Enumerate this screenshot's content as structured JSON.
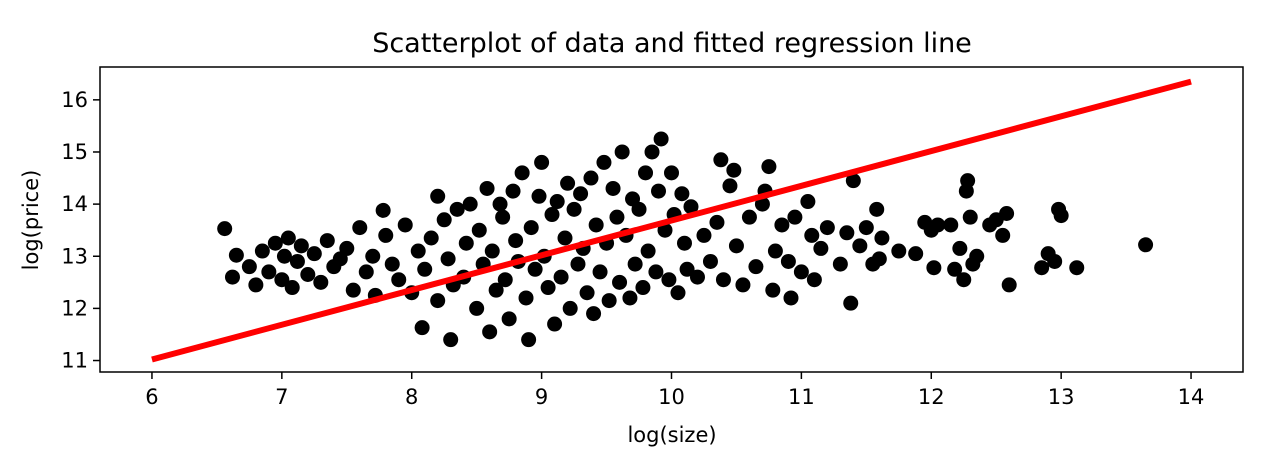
{
  "chart_data": {
    "type": "scatter",
    "title": "Scatterplot of data and fitted regression line",
    "xlabel": "log(size)",
    "ylabel": "log(price)",
    "xlim": [
      5.6,
      14.4
    ],
    "ylim": [
      10.78,
      16.63
    ],
    "x_ticks": [
      6,
      7,
      8,
      9,
      10,
      11,
      12,
      13,
      14
    ],
    "y_ticks": [
      11,
      12,
      13,
      14,
      15,
      16
    ],
    "grid": false,
    "legend": "none",
    "point_color": "#000000",
    "line_color": "#ff0000",
    "series": [
      {
        "type": "scatter",
        "points": [
          [
            6.56,
            13.53
          ],
          [
            6.62,
            12.6
          ],
          [
            6.65,
            13.02
          ],
          [
            6.75,
            12.8
          ],
          [
            6.8,
            12.45
          ],
          [
            6.85,
            13.1
          ],
          [
            6.9,
            12.7
          ],
          [
            6.95,
            13.25
          ],
          [
            7.0,
            12.55
          ],
          [
            7.02,
            13.0
          ],
          [
            7.05,
            13.35
          ],
          [
            7.08,
            12.4
          ],
          [
            7.12,
            12.9
          ],
          [
            7.15,
            13.2
          ],
          [
            7.2,
            12.65
          ],
          [
            7.25,
            13.05
          ],
          [
            7.3,
            12.5
          ],
          [
            7.35,
            13.3
          ],
          [
            7.4,
            12.8
          ],
          [
            7.45,
            12.95
          ],
          [
            7.5,
            13.15
          ],
          [
            7.55,
            12.35
          ],
          [
            7.6,
            13.55
          ],
          [
            7.65,
            12.7
          ],
          [
            7.7,
            13.0
          ],
          [
            7.72,
            12.25
          ],
          [
            7.78,
            13.88
          ],
          [
            7.8,
            13.4
          ],
          [
            7.85,
            12.85
          ],
          [
            7.9,
            12.55
          ],
          [
            7.95,
            13.6
          ],
          [
            8.0,
            12.3
          ],
          [
            8.05,
            13.1
          ],
          [
            8.08,
            11.63
          ],
          [
            8.1,
            12.75
          ],
          [
            8.15,
            13.35
          ],
          [
            8.2,
            12.15
          ],
          [
            8.2,
            14.15
          ],
          [
            8.25,
            13.7
          ],
          [
            8.28,
            12.95
          ],
          [
            8.3,
            11.4
          ],
          [
            8.32,
            12.45
          ],
          [
            8.35,
            13.9
          ],
          [
            8.4,
            12.6
          ],
          [
            8.42,
            13.25
          ],
          [
            8.45,
            14.0
          ],
          [
            8.5,
            12.0
          ],
          [
            8.52,
            13.5
          ],
          [
            8.55,
            12.85
          ],
          [
            8.58,
            14.3
          ],
          [
            8.6,
            11.55
          ],
          [
            8.62,
            13.1
          ],
          [
            8.65,
            12.35
          ],
          [
            8.68,
            14.0
          ],
          [
            8.7,
            13.75
          ],
          [
            8.72,
            12.55
          ],
          [
            8.75,
            11.8
          ],
          [
            8.78,
            14.25
          ],
          [
            8.8,
            13.3
          ],
          [
            8.82,
            12.9
          ],
          [
            8.85,
            14.6
          ],
          [
            8.88,
            12.2
          ],
          [
            8.9,
            11.4
          ],
          [
            8.92,
            13.55
          ],
          [
            8.95,
            12.75
          ],
          [
            8.98,
            14.15
          ],
          [
            9.0,
            14.8
          ],
          [
            9.02,
            13.0
          ],
          [
            9.05,
            12.4
          ],
          [
            9.08,
            13.8
          ],
          [
            9.1,
            11.7
          ],
          [
            9.12,
            14.05
          ],
          [
            9.15,
            12.6
          ],
          [
            9.18,
            13.35
          ],
          [
            9.2,
            14.4
          ],
          [
            9.22,
            12.0
          ],
          [
            9.25,
            13.9
          ],
          [
            9.28,
            12.85
          ],
          [
            9.3,
            14.2
          ],
          [
            9.32,
            13.15
          ],
          [
            9.35,
            12.3
          ],
          [
            9.38,
            14.5
          ],
          [
            9.4,
            11.9
          ],
          [
            9.42,
            13.6
          ],
          [
            9.45,
            12.7
          ],
          [
            9.48,
            14.8
          ],
          [
            9.5,
            13.25
          ],
          [
            9.52,
            12.15
          ],
          [
            9.55,
            14.3
          ],
          [
            9.58,
            13.75
          ],
          [
            9.6,
            12.5
          ],
          [
            9.62,
            15.0
          ],
          [
            9.65,
            13.4
          ],
          [
            9.68,
            12.2
          ],
          [
            9.7,
            14.1
          ],
          [
            9.72,
            12.85
          ],
          [
            9.75,
            13.9
          ],
          [
            9.78,
            12.4
          ],
          [
            9.8,
            14.6
          ],
          [
            9.82,
            13.1
          ],
          [
            9.85,
            15.0
          ],
          [
            9.88,
            12.7
          ],
          [
            9.9,
            14.25
          ],
          [
            9.92,
            15.25
          ],
          [
            9.95,
            13.5
          ],
          [
            9.98,
            12.55
          ],
          [
            10.0,
            14.6
          ],
          [
            10.02,
            13.8
          ],
          [
            10.05,
            12.3
          ],
          [
            10.08,
            14.2
          ],
          [
            10.1,
            13.25
          ],
          [
            10.12,
            12.75
          ],
          [
            10.15,
            13.95
          ],
          [
            10.2,
            12.6
          ],
          [
            10.25,
            13.4
          ],
          [
            10.3,
            12.9
          ],
          [
            10.35,
            13.65
          ],
          [
            10.38,
            14.85
          ],
          [
            10.4,
            12.55
          ],
          [
            10.45,
            14.35
          ],
          [
            10.48,
            14.65
          ],
          [
            10.5,
            13.2
          ],
          [
            10.55,
            12.45
          ],
          [
            10.6,
            13.75
          ],
          [
            10.65,
            12.8
          ],
          [
            10.7,
            14.0
          ],
          [
            10.72,
            14.25
          ],
          [
            10.75,
            14.72
          ],
          [
            10.78,
            12.35
          ],
          [
            10.8,
            13.1
          ],
          [
            10.85,
            13.6
          ],
          [
            10.9,
            12.9
          ],
          [
            10.92,
            12.2
          ],
          [
            10.95,
            13.75
          ],
          [
            11.0,
            12.7
          ],
          [
            11.05,
            14.05
          ],
          [
            11.08,
            13.4
          ],
          [
            11.1,
            12.55
          ],
          [
            11.15,
            13.15
          ],
          [
            11.2,
            13.55
          ],
          [
            11.3,
            12.85
          ],
          [
            11.35,
            13.45
          ],
          [
            11.38,
            12.1
          ],
          [
            11.4,
            14.45
          ],
          [
            11.45,
            13.2
          ],
          [
            11.5,
            13.55
          ],
          [
            11.55,
            12.85
          ],
          [
            11.58,
            13.9
          ],
          [
            11.6,
            12.95
          ],
          [
            11.62,
            13.35
          ],
          [
            11.75,
            13.1
          ],
          [
            11.88,
            13.05
          ],
          [
            11.95,
            13.65
          ],
          [
            12.0,
            13.5
          ],
          [
            12.02,
            12.78
          ],
          [
            12.05,
            13.6
          ],
          [
            12.15,
            13.6
          ],
          [
            12.18,
            12.75
          ],
          [
            12.22,
            13.15
          ],
          [
            12.25,
            12.55
          ],
          [
            12.27,
            14.25
          ],
          [
            12.28,
            14.45
          ],
          [
            12.3,
            13.75
          ],
          [
            12.32,
            12.85
          ],
          [
            12.35,
            13.0
          ],
          [
            12.45,
            13.6
          ],
          [
            12.5,
            13.7
          ],
          [
            12.55,
            13.4
          ],
          [
            12.58,
            13.82
          ],
          [
            12.6,
            12.45
          ],
          [
            12.85,
            12.78
          ],
          [
            12.9,
            13.05
          ],
          [
            12.95,
            12.9
          ],
          [
            12.98,
            13.9
          ],
          [
            13.0,
            13.78
          ],
          [
            13.12,
            12.78
          ],
          [
            13.65,
            13.22
          ]
        ]
      },
      {
        "type": "line",
        "name": "",
        "x": [
          6.0,
          14.0
        ],
        "y": [
          11.02,
          16.35
        ]
      }
    ]
  }
}
